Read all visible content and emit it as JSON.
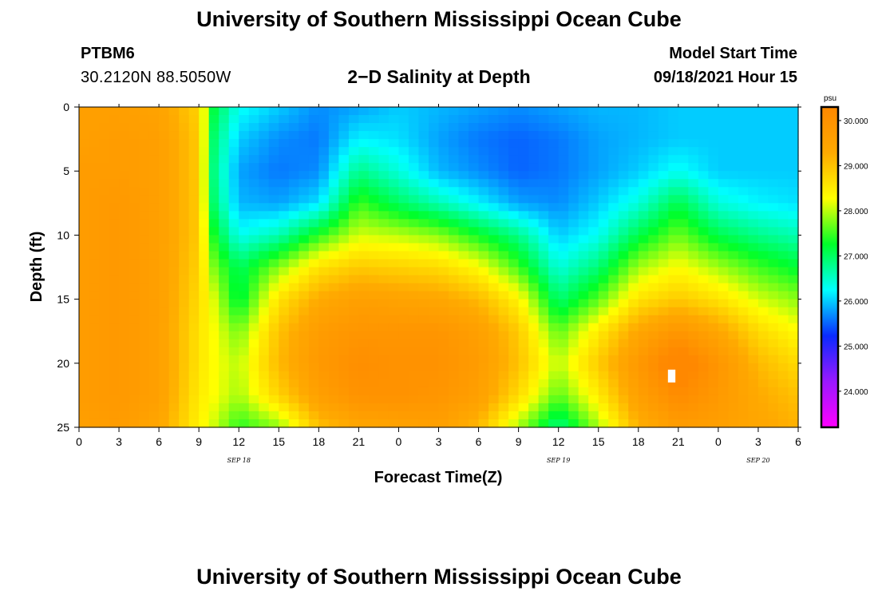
{
  "header": {
    "site_title": "University of Southern Mississippi Ocean Cube",
    "station_id": "PTBM6",
    "coordinates": "30.2120N  88.5050W",
    "model_start_label": "Model Start Time",
    "model_start_value": "09/18/2021 Hour 15"
  },
  "footer": {
    "site_title": "University of Southern Mississippi Ocean Cube"
  },
  "chart_data": {
    "type": "heatmap",
    "title": "2−D Salinity at Depth",
    "xlabel": "Forecast Time(Z)",
    "ylabel": "Depth (ft)",
    "x_tick_labels": [
      "0",
      "3",
      "6",
      "9",
      "12",
      "15",
      "18",
      "21",
      "0",
      "3",
      "6",
      "9",
      "12",
      "15",
      "18",
      "21",
      "0",
      "3",
      "6"
    ],
    "x_ticks_hours": [
      0,
      3,
      6,
      9,
      12,
      15,
      18,
      21,
      24,
      27,
      30,
      33,
      36,
      39,
      42,
      45,
      48,
      51,
      54
    ],
    "xlim_hours": [
      0,
      54
    ],
    "date_labels": [
      {
        "label": "SEP 18",
        "hour": 12
      },
      {
        "label": "SEP 19",
        "hour": 36
      },
      {
        "label": "SEP 20",
        "hour": 51
      }
    ],
    "y_tick_labels": [
      "0",
      "5",
      "10",
      "15",
      "20",
      "25"
    ],
    "y_ticks": [
      0,
      5,
      10,
      15,
      20,
      25
    ],
    "ylim": [
      0,
      25
    ],
    "colorbar": {
      "unit": "psu",
      "min": 23.2,
      "max": 30.3,
      "tick_labels": [
        "30.000",
        "29.000",
        "28.000",
        "27.000",
        "26.000",
        "25.000",
        "24.000"
      ],
      "ticks": [
        30,
        29,
        28,
        27,
        26,
        25,
        24
      ],
      "colors": [
        "#ff00ff",
        "#9a19ff",
        "#0a2aff",
        "#00ffff",
        "#00ff2a",
        "#ffff00",
        "#ffaa00",
        "#ff8800"
      ]
    },
    "grid": {
      "hours": [
        0,
        3,
        6,
        9,
        10,
        12,
        15,
        18,
        21,
        24,
        27,
        30,
        33,
        36,
        39,
        42,
        45,
        48,
        51,
        54
      ],
      "depths": [
        0,
        2.5,
        5,
        7.5,
        10,
        12.5,
        15,
        17.5,
        20,
        22.5,
        25
      ],
      "salinity": [
        [
          29.6,
          29.6,
          29.5,
          28.8,
          27.2,
          26.3,
          26.0,
          25.7,
          25.8,
          26.0,
          25.9,
          25.8,
          25.7,
          25.8,
          25.9,
          25.9,
          26.0,
          26.0,
          26.0,
          26.0
        ],
        [
          29.6,
          29.7,
          29.6,
          28.9,
          27.0,
          26.0,
          25.7,
          25.6,
          26.2,
          26.1,
          25.8,
          25.6,
          25.5,
          25.6,
          25.8,
          25.9,
          26.0,
          26.0,
          26.0,
          26.0
        ],
        [
          29.7,
          29.7,
          29.6,
          28.9,
          26.9,
          25.8,
          25.6,
          25.7,
          26.8,
          26.4,
          25.9,
          25.7,
          25.5,
          25.6,
          25.8,
          26.0,
          26.3,
          26.0,
          26.0,
          26.0
        ],
        [
          29.7,
          29.8,
          29.6,
          28.9,
          27.0,
          25.9,
          25.8,
          26.1,
          27.5,
          27.0,
          26.6,
          26.2,
          25.8,
          25.7,
          26.0,
          26.4,
          27.1,
          26.4,
          26.2,
          26.1
        ],
        [
          29.7,
          29.8,
          29.6,
          28.9,
          27.4,
          26.3,
          26.6,
          27.4,
          28.1,
          28.0,
          27.8,
          27.3,
          26.8,
          26.0,
          26.3,
          27.1,
          27.7,
          27.1,
          26.8,
          26.6
        ],
        [
          29.7,
          29.8,
          29.6,
          28.8,
          27.8,
          27.0,
          27.8,
          28.6,
          28.9,
          28.8,
          28.7,
          28.3,
          27.5,
          26.4,
          26.9,
          27.9,
          28.3,
          27.9,
          27.5,
          27.2
        ],
        [
          29.7,
          29.8,
          29.6,
          28.7,
          28.2,
          27.1,
          28.6,
          29.3,
          29.6,
          29.5,
          29.4,
          29.1,
          28.4,
          26.9,
          27.6,
          28.6,
          28.9,
          28.6,
          28.1,
          27.8
        ],
        [
          29.7,
          29.8,
          29.6,
          28.6,
          28.3,
          27.7,
          29.0,
          29.7,
          29.9,
          29.9,
          29.9,
          29.6,
          28.9,
          27.6,
          28.5,
          29.4,
          29.9,
          29.4,
          28.7,
          28.3
        ],
        [
          29.7,
          29.8,
          29.6,
          28.6,
          28.3,
          28.0,
          29.1,
          29.8,
          30.1,
          30.0,
          30.0,
          29.7,
          29.0,
          28.0,
          28.9,
          29.8,
          30.6,
          29.9,
          29.1,
          28.7
        ],
        [
          29.7,
          29.8,
          29.6,
          28.5,
          28.3,
          27.9,
          28.8,
          29.6,
          30.0,
          30.0,
          29.9,
          29.6,
          28.7,
          27.6,
          28.5,
          29.6,
          30.2,
          29.8,
          29.3,
          29.0
        ],
        [
          29.6,
          29.7,
          29.4,
          28.4,
          28.1,
          27.4,
          27.8,
          29.0,
          29.4,
          29.5,
          29.6,
          29.1,
          27.9,
          26.8,
          27.9,
          29.2,
          29.7,
          29.6,
          29.4,
          29.2
        ]
      ],
      "marked_max_cell": {
        "hour": 44.5,
        "depth": 21
      }
    }
  }
}
